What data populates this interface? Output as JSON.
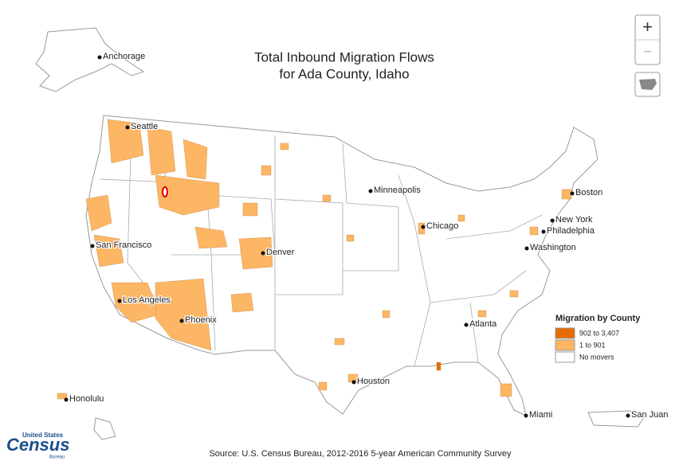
{
  "title": [
    "Total Inbound Migration Flows",
    "for Ada County, Idaho"
  ],
  "controls": {
    "zoom_in": "+",
    "zoom_out": "−"
  },
  "cities": [
    "Anchorage",
    "Seattle",
    "Minneapolis",
    "Boston",
    "New York",
    "Philadelphia",
    "Chicago",
    "Washington",
    "San Francisco",
    "Denver",
    "Los Angeles",
    "Phoenix",
    "Atlanta",
    "Houston",
    "Honolulu",
    "Miami",
    "San Juan"
  ],
  "legend": {
    "title": "Migration by County",
    "items": [
      {
        "label": "902 to 3,407",
        "color": "#e66c00"
      },
      {
        "label": "1 to 901",
        "color": "#fdb664"
      },
      {
        "label": "No movers",
        "color": "#ffffff"
      }
    ]
  },
  "source": "Source: U.S. Census Bureau, 2012-2016 5-year American Community Survey",
  "logo": {
    "line1": "United States",
    "line2": "Census",
    "line3": "Bureau"
  }
}
